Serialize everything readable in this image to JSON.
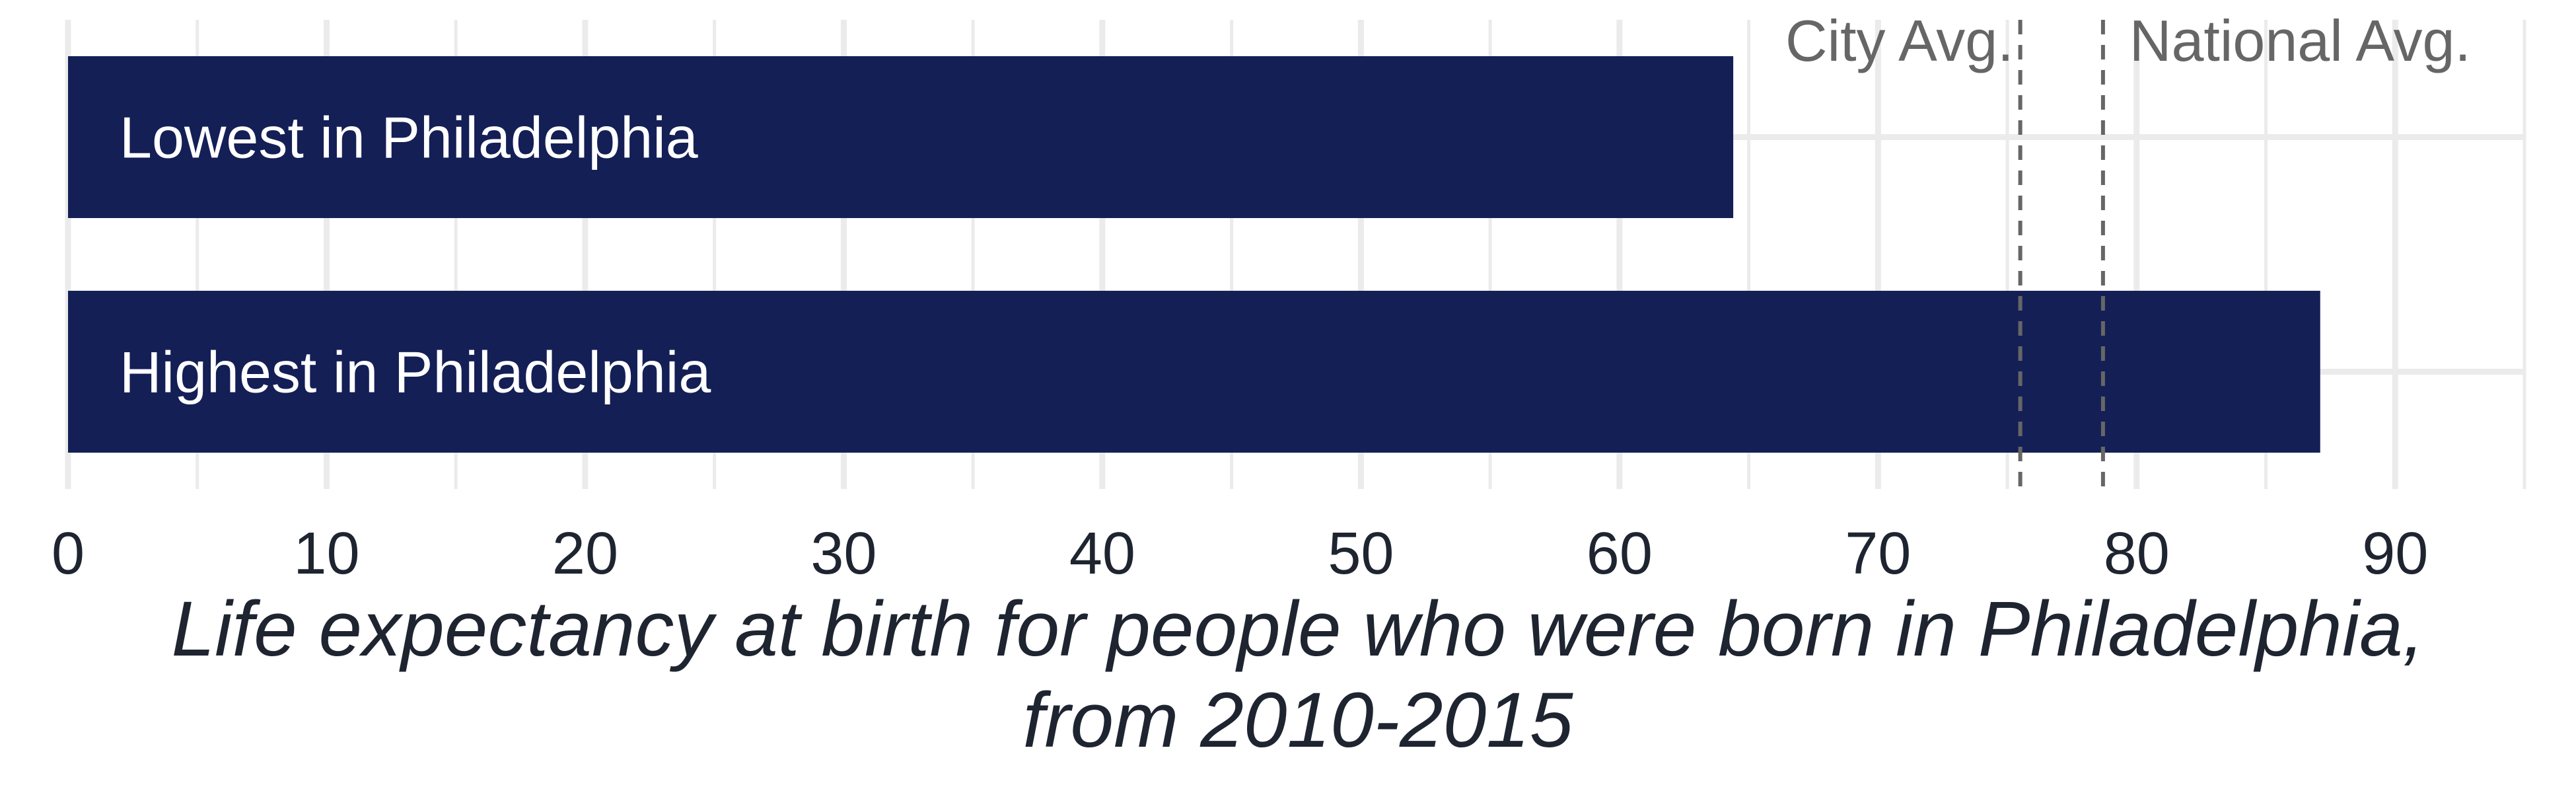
{
  "chart_data": {
    "type": "bar",
    "orientation": "horizontal",
    "categories": [
      "Lowest in Philadelphia",
      "Highest in Philadelphia"
    ],
    "values": [
      64.4,
      87.1
    ],
    "xlim": [
      0,
      95
    ],
    "x_ticks": [
      0,
      10,
      20,
      30,
      40,
      50,
      60,
      70,
      80,
      90
    ],
    "xlabel_lines": [
      "Life expectancy at birth for people who were born in Philadelphia,",
      "from 2010-2015"
    ],
    "reference_lines": [
      {
        "name": "City Avg.",
        "value": 75.5
      },
      {
        "name": "National Avg.",
        "value": 78.7
      }
    ],
    "bar_color": "#141f56",
    "grid": true,
    "legend": "none"
  }
}
